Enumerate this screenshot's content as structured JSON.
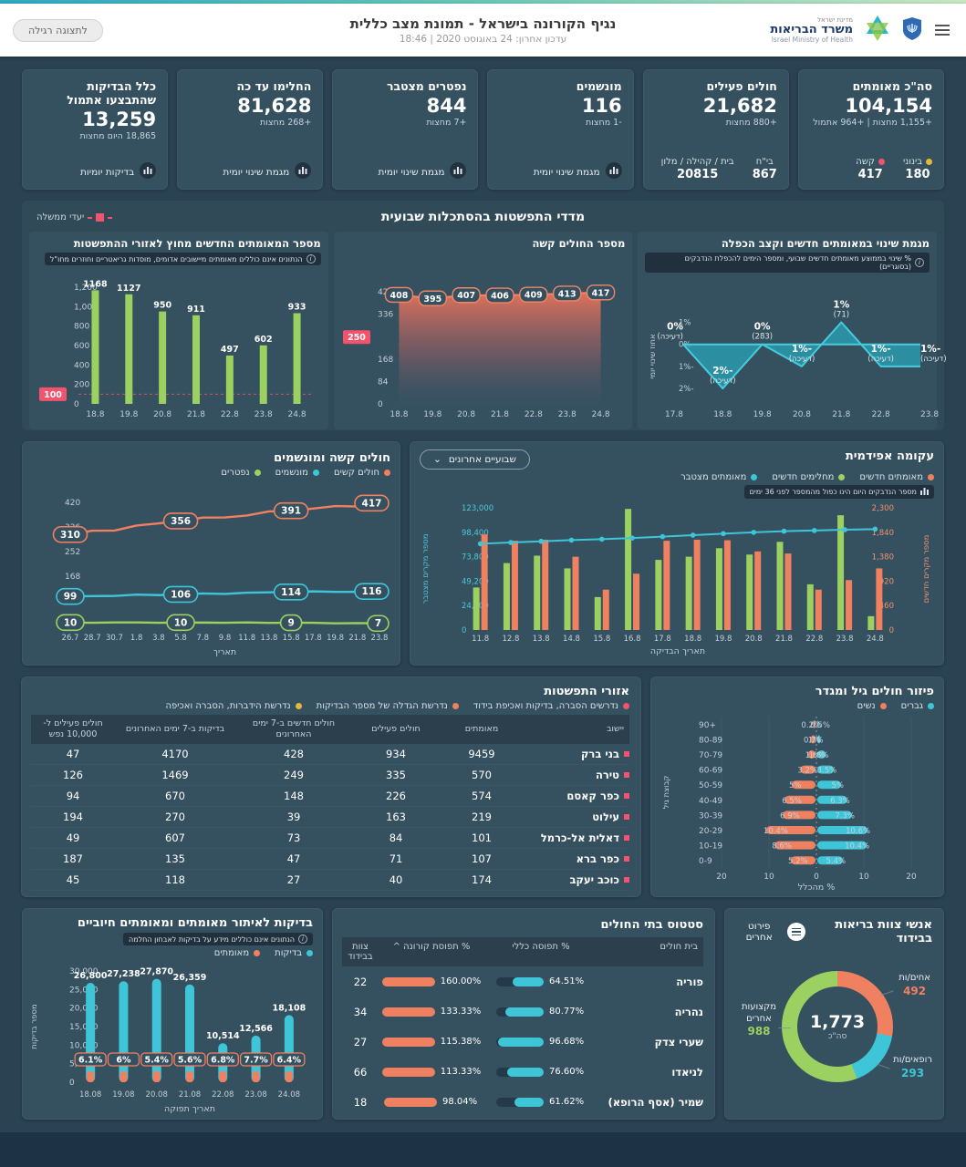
{
  "colors": {
    "teal": "#3ec6d8",
    "green": "#9ad160",
    "salmon": "#ef8161",
    "red": "#f2536d",
    "yellow": "#e2b93b",
    "card": "#35505f"
  },
  "header": {
    "title": "נגיף הקורונה בישראל - תמונת מצב כללית",
    "subtitle": "עדכון אחרון: 24 באוגוסט 2020 | 18:46",
    "view_toggle_label": "לתצוגה רגילה",
    "logo": {
      "line1": "מדינת ישראל",
      "line2": "משרד הבריאות",
      "line3": "Israel Ministry of Health"
    }
  },
  "kpis": [
    {
      "title": "סה\"כ מאומתים",
      "value": "104,154",
      "delta": "+1,155 מחצות | +964 אתמול",
      "breakdown": [
        {
          "label": "בינוני",
          "value": "180",
          "color": "#e2b93b"
        },
        {
          "label": "קשה",
          "value": "417",
          "color": "#f2536d"
        }
      ]
    },
    {
      "title": "חולים פעילים",
      "value": "21,682",
      "delta": "+880 מחצות",
      "breakdown": [
        {
          "label": "בי\"ח",
          "value": "867"
        },
        {
          "label": "בית / קהילה / מלון",
          "value": "20815"
        }
      ]
    },
    {
      "title": "מונשמים",
      "value": "116",
      "delta": "-1 מחצות",
      "link": "מגמת שינוי יומית"
    },
    {
      "title": "נפטרים מצטבר",
      "value": "844",
      "delta": "+7 מחצות",
      "link": "מגמת שינוי יומית"
    },
    {
      "title": "החלימו עד כה",
      "value": "81,628",
      "delta": "+268 מחצות",
      "link": "מגמת שינוי יומית"
    },
    {
      "title": "כלל הבדיקות שהתבצעו אתמול",
      "value": "13,259",
      "delta": "18,865 היום מחצות",
      "link": "בדיקות יומיות"
    }
  ],
  "spread_metrics": {
    "title": "מדדי התפשטות בהסתכלות שבועית",
    "target_legend_label": "יעדי ממשלה",
    "change_trend_chart": {
      "title": "מגמת שינוי במאומתים חדשים וקצב הכפלה",
      "info": "% שינוי בממוצע מאומתים חדשים שבועי, ומספר הימים להכפלת הנדבקים (בסוגריים)",
      "chart_data": {
        "type": "area",
        "categories": [
          "17.8",
          "18.8",
          "19.8",
          "20.8",
          "21.8",
          "22.8",
          "23.8"
        ],
        "values": [
          0,
          -2,
          0,
          -1,
          1,
          -1,
          -1
        ],
        "labels": [
          "0%",
          "-2%",
          "0%",
          "-1%",
          "1%",
          "-1%",
          "-1%"
        ],
        "sublabels": [
          "(דעיכה)",
          "(דעיכה)",
          "(283)",
          "(דעיכה)",
          "(71)",
          "(דעיכה)",
          "(דעיכה)"
        ],
        "yticks": [
          "1%",
          "0%",
          "-1%",
          "-2%"
        ],
        "ylabel": "אחוז שינוי יומי",
        "ylim": [
          -2.7,
          1.6
        ]
      }
    },
    "severe_chart": {
      "title": "מספר החולים קשה",
      "chart_data": {
        "type": "area",
        "categories": [
          "18.8",
          "19.8",
          "20.8",
          "21.8",
          "22.8",
          "23.8",
          "24.8"
        ],
        "values": [
          408,
          395,
          407,
          406,
          409,
          413,
          417
        ],
        "target": 250,
        "yticks": [
          0,
          84,
          168,
          336,
          420
        ],
        "ylim": [
          0,
          430
        ]
      }
    },
    "outside_areas_chart": {
      "title": "מספר המאומתים החדשים מחוץ לאזורי ההתפשטות",
      "info": "הנתונים אינם כוללים מאומתים מיישובים אדומים, מוסדות גריאטריים וחוזרים מחו\"ל",
      "chart_data": {
        "type": "bar",
        "categories": [
          "18.8",
          "19.8",
          "20.8",
          "21.8",
          "22.8",
          "23.8",
          "24.8"
        ],
        "values": [
          1168,
          1127,
          950,
          911,
          497,
          602,
          933
        ],
        "target": 100,
        "yticks": [
          0,
          200,
          400,
          600,
          800,
          1000,
          1200
        ],
        "ylim": [
          0,
          1200
        ]
      }
    }
  },
  "epidemic": {
    "title": "עקומה אפידמית",
    "dropdown_label": "שבועיים אחרונים",
    "info": "מספר הנדבקים היום הינו כפול מהמספר לפני 36 ימים",
    "legend": [
      {
        "label": "מאומתים חדשים",
        "color": "#ef8161"
      },
      {
        "label": "מחלימים חדשים",
        "color": "#9ad160"
      },
      {
        "label": "מאומתים מצטבר",
        "color": "#3ec6d8"
      }
    ],
    "xlabel": "תאריך הבדיקה",
    "ylabel_left": "מספר מקרים מצטבר",
    "ylabel_right": "מספר מקרים חדשים",
    "chart_data": {
      "type": "bar+line",
      "categories": [
        "11.8",
        "12.8",
        "13.8",
        "14.8",
        "15.8",
        "16.8",
        "17.8",
        "18.8",
        "19.8",
        "20.8",
        "21.8",
        "22.8",
        "23.8",
        "24.8"
      ],
      "series": [
        {
          "name": "מחלימים חדשים",
          "kind": "bar",
          "axis": "right",
          "color": "#9ad160",
          "values": [
            800,
            1260,
            1400,
            1160,
            620,
            2280,
            1320,
            1380,
            1540,
            1420,
            1660,
            860,
            2160,
            260
          ]
        },
        {
          "name": "מאומתים חדשים",
          "kind": "bar",
          "axis": "right",
          "color": "#ef8161",
          "values": [
            1800,
            1680,
            1700,
            1380,
            760,
            1060,
            1680,
            1700,
            1690,
            1480,
            1440,
            760,
            940,
            1160
          ]
        },
        {
          "name": "מאומתים מצטבר",
          "kind": "line",
          "axis": "left",
          "color": "#3ec6d8",
          "values": [
            86800,
            88100,
            89300,
            90500,
            91400,
            92600,
            94000,
            95500,
            97000,
            98300,
            99500,
            100200,
            101000,
            101600
          ]
        }
      ],
      "left_ticks": [
        0,
        24600,
        49200,
        73800,
        98400,
        123000
      ],
      "right_ticks": [
        0,
        460,
        920,
        1380,
        1840,
        2300
      ]
    }
  },
  "severe_ventilated": {
    "title": "חולים קשה ומונשמים",
    "legend": [
      {
        "label": "חולים קשים",
        "color": "#ef8161"
      },
      {
        "label": "מונשמים",
        "color": "#3ec6d8"
      },
      {
        "label": "נפטרים",
        "color": "#9ad160"
      }
    ],
    "xlabel": "תאריך",
    "chart_data": {
      "type": "line",
      "x": [
        "26.7",
        "28.7",
        "30.7",
        "1.8",
        "3.8",
        "5.8",
        "7.8",
        "9.8",
        "11.8",
        "13.8",
        "15.8",
        "17.8",
        "19.8",
        "21.8",
        "23.8"
      ],
      "series": [
        {
          "name": "חולים קשים",
          "color": "#ef8161",
          "points": [
            [
              0,
              310
            ],
            [
              5,
              356
            ],
            [
              10,
              391
            ],
            [
              14,
              417
            ]
          ]
        },
        {
          "name": "מונשמים",
          "color": "#3ec6d8",
          "points": [
            [
              0,
              99
            ],
            [
              5,
              106
            ],
            [
              10,
              114
            ],
            [
              14,
              116
            ]
          ]
        },
        {
          "name": "נפטרים",
          "color": "#9ad160",
          "points": [
            [
              0,
              10
            ],
            [
              5,
              10
            ],
            [
              10,
              9
            ],
            [
              14,
              7
            ]
          ]
        }
      ],
      "yticks": [
        168,
        252,
        336,
        420
      ],
      "ylim": [
        0,
        460
      ]
    }
  },
  "spread_areas": {
    "title": "אזורי התפשטות",
    "legend": [
      {
        "label": "נדרשים הסברה, בדיקות ואכיפת בידוד",
        "color": "#f2536d"
      },
      {
        "label": "נדרשת הגדלה של מספר הבדיקות",
        "color": "#ef8161"
      },
      {
        "label": "נדרשת הידברות, הסברה ואכיפה",
        "color": "#e2b93b"
      }
    ],
    "columns": [
      "יישוב",
      "מאומתים",
      "חולים פעילים",
      "חולים חדשים ב-7 ימים האחרונים",
      "בדיקות ב-7 ימים האחרונים",
      "חולים פעילים ל- 10,000 נפש"
    ],
    "rows": [
      {
        "name": "בני ברק",
        "status_color": "#f2536d",
        "values": [
          "9459",
          "934",
          "428",
          "4170",
          "47"
        ]
      },
      {
        "name": "טירה",
        "status_color": "#f2536d",
        "values": [
          "570",
          "335",
          "249",
          "1469",
          "126"
        ]
      },
      {
        "name": "כפר קאסם",
        "status_color": "#f2536d",
        "values": [
          "574",
          "226",
          "148",
          "670",
          "94"
        ]
      },
      {
        "name": "עילוט",
        "status_color": "#f2536d",
        "values": [
          "219",
          "163",
          "39",
          "270",
          "194"
        ]
      },
      {
        "name": "דאלית אל-כרמל",
        "status_color": "#f2536d",
        "values": [
          "101",
          "84",
          "73",
          "607",
          "49"
        ]
      },
      {
        "name": "כפר ברא",
        "status_color": "#f2536d",
        "values": [
          "107",
          "71",
          "47",
          "135",
          "187"
        ]
      },
      {
        "name": "כוכב יעקב",
        "status_color": "#f2536d",
        "values": [
          "174",
          "40",
          "27",
          "118",
          "45"
        ]
      }
    ]
  },
  "age_gender": {
    "title": "פיזור חולים גיל ומגדר",
    "legend": [
      {
        "label": "גברים",
        "color": "#3ec6d8"
      },
      {
        "label": "נשים",
        "color": "#ef8161"
      }
    ],
    "ylabel": "קבוצת גיל",
    "xlabel": "% מהכלל",
    "chart_data": {
      "type": "pyramid",
      "age_groups": [
        "+90",
        "80-89",
        "70-79",
        "60-69",
        "50-59",
        "40-49",
        "30-39",
        "20-29",
        "10-19",
        "0-9"
      ],
      "women": [
        0.5,
        1,
        1.6,
        3.2,
        5,
        6.5,
        6.9,
        10.4,
        8.6,
        5.2
      ],
      "men": [
        0.2,
        0.7,
        1.8,
        3.5,
        5,
        6.3,
        7.3,
        10.6,
        10.4,
        5.4
      ],
      "women_labels": [
        "0.5%",
        "1%",
        "1.6%",
        "3.2%",
        "5%",
        "6.5%",
        "6.9%",
        "10.4%",
        "8.6%",
        "5.2%"
      ],
      "men_labels": [
        "0.2%",
        "0.7%",
        "1.8%",
        "3.5%",
        "5%",
        "6.3%",
        "7.3%",
        "10.6%",
        "10.4%",
        "5.4%"
      ],
      "xlim": 20,
      "xticks": [
        "20",
        "10",
        "0",
        "10",
        "20"
      ]
    }
  },
  "tests": {
    "title": "בדיקות לאיתור מאומתים ומאומתים חיוביים",
    "info": "הנתונים אינם כוללים מידע על בדיקות לאבחון החלמה",
    "legend": [
      {
        "label": "בדיקות",
        "color": "#3ec6d8"
      },
      {
        "label": "מאומתים",
        "color": "#ef8161"
      }
    ],
    "ylabel": "מספר בדיקות",
    "xlabel": "תאריך תפוקה",
    "chart_data": {
      "type": "bar",
      "categories": [
        "18.08",
        "19.08",
        "20.08",
        "21.08",
        "22.08",
        "23.08",
        "24.08"
      ],
      "tests": [
        26800,
        27238,
        27870,
        26359,
        10514,
        12566,
        18108
      ],
      "tests_labels": [
        "26,800",
        "27,238",
        "27,870",
        "26,359",
        "10,514",
        "12,566",
        "18,108"
      ],
      "positive_pct": [
        "6.1%",
        "6%",
        "5.4%",
        "5.6%",
        "6.8%",
        "7.7%",
        "6.4%"
      ],
      "yticks": [
        0,
        5000,
        10000,
        15000,
        20000,
        25000,
        30000
      ],
      "ylim": [
        0,
        30000
      ]
    }
  },
  "hospitals": {
    "title": "סטטוס בתי החולים",
    "columns": [
      "בית חולים",
      "% תפוסה כללי",
      "% תפוסת קורונה ^",
      "צוות בבידוד"
    ],
    "rows": [
      {
        "name": "פוריה",
        "general": "64.51%",
        "general_val": 64.51,
        "corona": "160.00%",
        "staff": "22"
      },
      {
        "name": "נהריה",
        "general": "80.77%",
        "general_val": 80.77,
        "corona": "133.33%",
        "staff": "34"
      },
      {
        "name": "שערי צדק",
        "general": "96.68%",
        "general_val": 96.68,
        "corona": "115.38%",
        "staff": "27"
      },
      {
        "name": "לניאדו",
        "general": "76.60%",
        "general_val": 76.6,
        "corona": "113.33%",
        "staff": "66"
      },
      {
        "name": "שמיר (אסף הרופא)",
        "general": "61.62%",
        "general_val": 61.62,
        "corona": "98.04%",
        "staff": "18"
      }
    ]
  },
  "staff_isolation": {
    "title": "אנשי צוות בריאות בבידוד",
    "details_label": "פירוט אחרים",
    "total": "1,773",
    "total_label": "סה\"כ",
    "chart_data": {
      "type": "donut",
      "slices": [
        {
          "label": "אחים/ות",
          "value": 492,
          "color": "#ef8161"
        },
        {
          "label": "רופאים/ות",
          "value": 293,
          "color": "#3ec6d8"
        },
        {
          "label": "מקצועות אחרים",
          "value": 988,
          "color": "#9ad160"
        }
      ]
    }
  }
}
